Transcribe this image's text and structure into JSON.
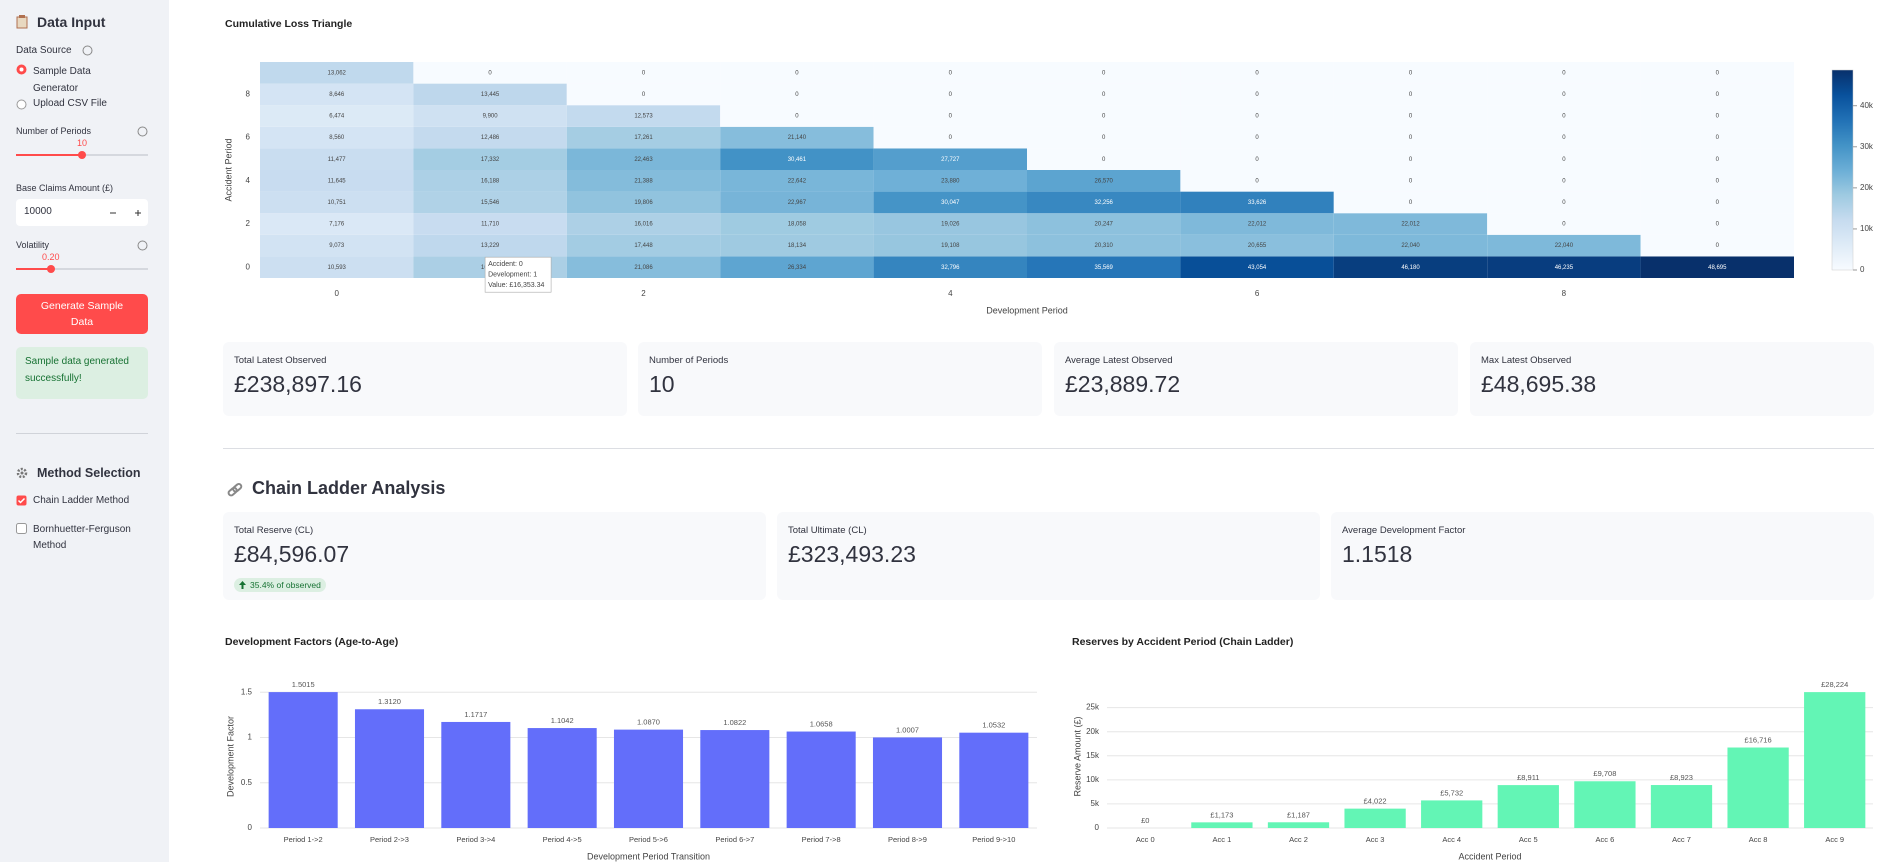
{
  "sidebar": {
    "title": "Data Input",
    "data_source_label": "Data Source",
    "radio_options": [
      "Sample Data Generator",
      "Upload CSV File"
    ],
    "periods_label": "Number of Periods",
    "periods_value": "10",
    "base_label": "Base Claims Amount (£)",
    "base_value": "10000",
    "volatility_label": "Volatility",
    "volatility_value": "0.20",
    "button": "Generate Sample Data",
    "success": "Sample data generated successfully!",
    "method_title": "Method Selection",
    "methods": [
      "Chain Ladder Method",
      "Bornhuetter-Ferguson Method"
    ]
  },
  "metrics": [
    {
      "label": "Total Latest Observed",
      "value": "£238,897.16"
    },
    {
      "label": "Number of Periods",
      "value": "10"
    },
    {
      "label": "Average Latest Observed",
      "value": "£23,889.72"
    },
    {
      "label": "Max Latest Observed",
      "value": "£48,695.38"
    }
  ],
  "chain_ladder": {
    "title": "Chain Ladder Analysis",
    "metrics": [
      {
        "label": "Total Reserve (CL)",
        "value": "£84,596.07",
        "delta": "35.4% of observed"
      },
      {
        "label": "Total Ultimate (CL)",
        "value": "£323,493.23"
      },
      {
        "label": "Average Development Factor",
        "value": "1.1518"
      }
    ]
  },
  "chart_data": [
    {
      "type": "heatmap",
      "title": "Cumulative Loss Triangle",
      "x_label": "Development Period",
      "y_label": "Accident Period",
      "x": [
        0,
        1,
        2,
        3,
        4,
        5,
        6,
        7,
        8,
        9
      ],
      "y": [
        0,
        1,
        2,
        3,
        4,
        5,
        6,
        7,
        8,
        9
      ],
      "z": [
        [
          10593,
          16353.34,
          21086,
          26334,
          32796,
          35569,
          43054,
          46180,
          46235,
          48695
        ],
        [
          9073,
          13229,
          17448,
          18134,
          19108,
          20310,
          20655,
          22040,
          22040,
          0
        ],
        [
          7176,
          11710,
          16016,
          18058,
          19026,
          20247,
          22012,
          22012,
          0,
          0
        ],
        [
          10751,
          15546,
          19806,
          22967,
          30047,
          32256,
          33626,
          0,
          0,
          0
        ],
        [
          11645,
          16188,
          21388,
          22642,
          23880,
          26570,
          0,
          0,
          0,
          0
        ],
        [
          11477,
          17332,
          22463,
          30461,
          27727,
          0,
          0,
          0,
          0,
          0
        ],
        [
          8560,
          12486,
          17261,
          21140,
          0,
          0,
          0,
          0,
          0,
          0
        ],
        [
          6474,
          9900,
          12573,
          0,
          0,
          0,
          0,
          0,
          0,
          0
        ],
        [
          8646,
          13445,
          0,
          0,
          0,
          0,
          0,
          0,
          0,
          0
        ],
        [
          13062,
          0,
          0,
          0,
          0,
          0,
          0,
          0,
          0,
          0
        ]
      ],
      "text": [
        [
          "10,593",
          "16,353",
          "21,086",
          "26,334",
          "32,796",
          "35,569",
          "43,054",
          "46,180",
          "46,235",
          "48,695"
        ],
        [
          "9,073",
          "13,229",
          "17,448",
          "18,134",
          "19,108",
          "20,310",
          "20,655",
          "22,040",
          "22,040",
          "0"
        ],
        [
          "7,176",
          "11,710",
          "16,016",
          "18,058",
          "19,026",
          "20,247",
          "22,012",
          "22,012",
          "0",
          "0"
        ],
        [
          "10,751",
          "15,546",
          "19,806",
          "22,967",
          "30,047",
          "32,256",
          "33,626",
          "0",
          "0",
          "0"
        ],
        [
          "11,645",
          "16,188",
          "21,388",
          "22,642",
          "23,880",
          "26,570",
          "0",
          "0",
          "0",
          "0"
        ],
        [
          "11,477",
          "17,332",
          "22,463",
          "30,461",
          "27,727",
          "0",
          "0",
          "0",
          "0",
          "0"
        ],
        [
          "8,560",
          "12,486",
          "17,261",
          "21,140",
          "0",
          "0",
          "0",
          "0",
          "0",
          "0"
        ],
        [
          "6,474",
          "9,900",
          "12,573",
          "0",
          "0",
          "0",
          "0",
          "0",
          "0",
          "0"
        ],
        [
          "8,646",
          "13,445",
          "0",
          "0",
          "0",
          "0",
          "0",
          "0",
          "0",
          "0"
        ],
        [
          "13,062",
          "0",
          "0",
          "0",
          "0",
          "0",
          "0",
          "0",
          "0",
          "0"
        ]
      ],
      "xlim": [
        -0.5,
        9.5
      ],
      "ylim": [
        -0.5,
        9.5
      ],
      "xticks": [
        0,
        2,
        4,
        6,
        8
      ],
      "yticks": [
        0,
        2,
        4,
        6,
        8
      ],
      "zlim": [
        0,
        48695
      ],
      "colorscale": [
        "#f7fbff",
        "#deebf7",
        "#c6dbef",
        "#9ecae1",
        "#6baed6",
        "#4292c6",
        "#2171b5",
        "#08519c",
        "#08306b"
      ],
      "colorbar_ticks": [
        0,
        {
          "value": 10000,
          "label": "10k"
        },
        {
          "value": 20000,
          "label": "20k"
        },
        {
          "value": 30000,
          "label": "30k"
        },
        {
          "value": 40000,
          "label": "40k"
        }
      ],
      "tooltip": {
        "row": 0,
        "col": 1,
        "lines": [
          "Accident: 0",
          "Development: 1",
          "Value: £16,353.34"
        ]
      }
    },
    {
      "type": "bar",
      "title": "Development Factors (Age-to-Age)",
      "x_label": "Development Period Transition",
      "y_label": "Development Factor",
      "categories": [
        "Period 1->2",
        "Period 2->3",
        "Period 3->4",
        "Period 4->5",
        "Period 5->6",
        "Period 6->7",
        "Period 7->8",
        "Period 8->9",
        "Period 9->10"
      ],
      "values": [
        1.5015,
        1.312,
        1.1717,
        1.1042,
        1.087,
        1.0822,
        1.0658,
        1.0007,
        1.0532
      ],
      "value_labels": [
        "1.5015",
        "1.3120",
        "1.1717",
        "1.1042",
        "1.0870",
        "1.0822",
        "1.0658",
        "1.0007",
        "1.0532"
      ],
      "color": "#636efa",
      "ylim": [
        0,
        1.58
      ],
      "yticks": [
        0,
        0.5,
        1,
        1.5
      ],
      "grid": true
    },
    {
      "type": "bar",
      "title": "Reserves by Accident Period (Chain Ladder)",
      "x_label": "Accident Period",
      "y_label": "Reserve Amount (£)",
      "categories": [
        "Acc 0",
        "Acc 1",
        "Acc 2",
        "Acc 3",
        "Acc 4",
        "Acc 5",
        "Acc 6",
        "Acc 7",
        "Acc 8",
        "Acc 9"
      ],
      "values": [
        0,
        1173,
        1187,
        4022,
        5732,
        8911,
        9708,
        8923,
        16716,
        28224
      ],
      "value_labels": [
        "£0",
        "£1,173",
        "£1,187",
        "£4,022",
        "£5,732",
        "£8,911",
        "£9,708",
        "£8,923",
        "£16,716",
        "£28,224"
      ],
      "color": "#63f5b5",
      "ylim": [
        0,
        29700
      ],
      "yticks": [
        0,
        {
          "value": 5000,
          "label": "5k"
        },
        {
          "value": 10000,
          "label": "10k"
        },
        {
          "value": 15000,
          "label": "15k"
        },
        {
          "value": 20000,
          "label": "20k"
        },
        {
          "value": 25000,
          "label": "25k"
        }
      ],
      "grid": true
    }
  ]
}
